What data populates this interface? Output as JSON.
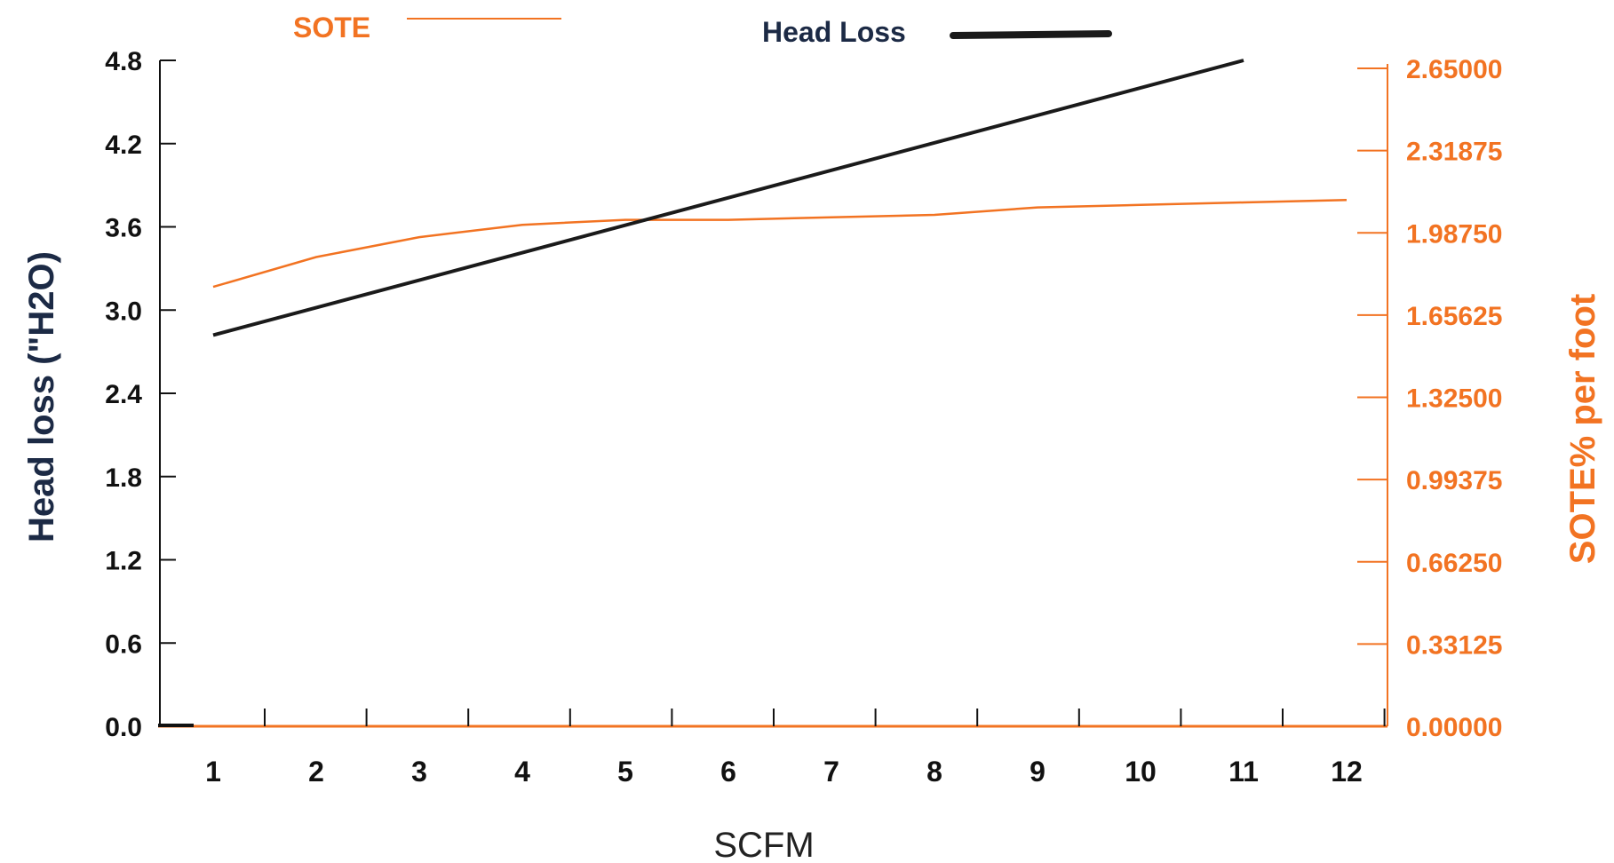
{
  "chart_data": {
    "type": "line",
    "xlabel": "SCFM",
    "ylabel_left": "Head loss (\"H2O)",
    "ylabel_right": "SOTE% per foot",
    "x_ticks": [
      "1",
      "2",
      "3",
      "4",
      "5",
      "6",
      "7",
      "8",
      "9",
      "10",
      "11",
      "12"
    ],
    "xlim": [
      1,
      12
    ],
    "ylim_left": [
      0,
      4.8
    ],
    "ylim_right": [
      0,
      2.65
    ],
    "y_ticks_left": [
      "0.0",
      "0.6",
      "1.2",
      "1.8",
      "2.4",
      "3.0",
      "3.6",
      "4.2",
      "4.8"
    ],
    "y_ticks_right": [
      "0.00000",
      "0.33125",
      "0.66250",
      "0.99375",
      "1.32500",
      "1.65625",
      "1.98750",
      "2.31875",
      "2.65000"
    ],
    "colors": {
      "head_loss": "#1a1a1a",
      "sote": "#f27322",
      "left_axis_title": "#1c2a45"
    },
    "legend": {
      "placement": "top-center"
    },
    "series": [
      {
        "name": "Head Loss",
        "axis": "left",
        "x": [
          1,
          11
        ],
        "y": [
          2.82,
          4.8
        ]
      },
      {
        "name": "SOTE",
        "axis": "right",
        "x": [
          1,
          2,
          3,
          4,
          5,
          6,
          7,
          8,
          9,
          10,
          11,
          12
        ],
        "y": [
          1.77,
          1.89,
          1.97,
          2.02,
          2.04,
          2.04,
          2.05,
          2.06,
          2.09,
          2.1,
          2.11,
          2.12
        ]
      }
    ]
  }
}
